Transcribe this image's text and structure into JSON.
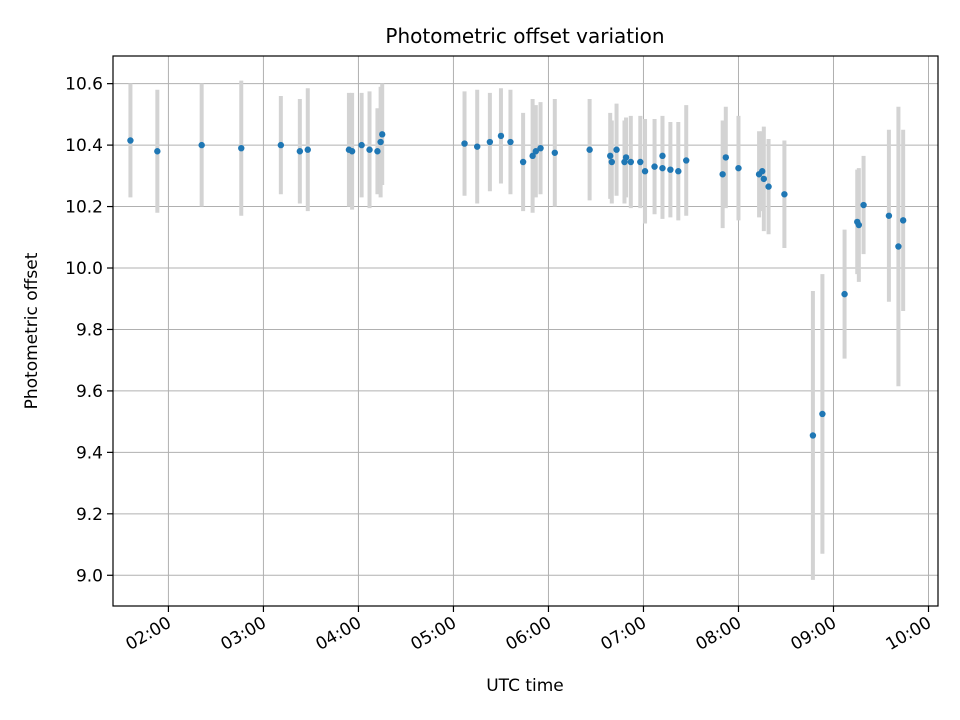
{
  "chart_data": {
    "type": "scatter",
    "title": "Photometric offset variation",
    "xlabel": "UTC time",
    "ylabel": "Photometric offset",
    "xlim": [
      "01:25",
      "10:06"
    ],
    "ylim": [
      8.9,
      10.69
    ],
    "x_ticks": [
      "02:00",
      "03:00",
      "04:00",
      "05:00",
      "06:00",
      "07:00",
      "08:00",
      "09:00",
      "10:00"
    ],
    "y_ticks": [
      "9.0",
      "9.2",
      "9.4",
      "9.6",
      "9.8",
      "10.0",
      "10.2",
      "10.4",
      "10.6"
    ],
    "grid": true,
    "colors": {
      "point": "#1f77b4",
      "errorbar": "#d3d3d3",
      "grid": "#b0b0b0"
    },
    "points": [
      {
        "x": "01:36",
        "y": 10.415,
        "err": 0.185
      },
      {
        "x": "01:53",
        "y": 10.38,
        "err": 0.2
      },
      {
        "x": "02:21",
        "y": 10.4,
        "err": 0.2
      },
      {
        "x": "02:46",
        "y": 10.39,
        "err": 0.22
      },
      {
        "x": "03:11",
        "y": 10.4,
        "err": 0.16
      },
      {
        "x": "03:23",
        "y": 10.38,
        "err": 0.17
      },
      {
        "x": "03:28",
        "y": 10.385,
        "err": 0.2
      },
      {
        "x": "03:54",
        "y": 10.385,
        "err": 0.185
      },
      {
        "x": "03:56",
        "y": 10.38,
        "err": 0.19
      },
      {
        "x": "04:02",
        "y": 10.4,
        "err": 0.17
      },
      {
        "x": "04:07",
        "y": 10.385,
        "err": 0.19
      },
      {
        "x": "04:12",
        "y": 10.38,
        "err": 0.14
      },
      {
        "x": "04:14",
        "y": 10.41,
        "err": 0.18
      },
      {
        "x": "04:15",
        "y": 10.435,
        "err": 0.165
      },
      {
        "x": "05:07",
        "y": 10.405,
        "err": 0.17
      },
      {
        "x": "05:15",
        "y": 10.395,
        "err": 0.185
      },
      {
        "x": "05:23",
        "y": 10.41,
        "err": 0.16
      },
      {
        "x": "05:30",
        "y": 10.43,
        "err": 0.155
      },
      {
        "x": "05:36",
        "y": 10.41,
        "err": 0.17
      },
      {
        "x": "05:44",
        "y": 10.345,
        "err": 0.16
      },
      {
        "x": "05:50",
        "y": 10.365,
        "err": 0.185
      },
      {
        "x": "05:52",
        "y": 10.38,
        "err": 0.15
      },
      {
        "x": "05:55",
        "y": 10.39,
        "err": 0.15
      },
      {
        "x": "06:04",
        "y": 10.375,
        "err": 0.175
      },
      {
        "x": "06:26",
        "y": 10.385,
        "err": 0.165
      },
      {
        "x": "06:39",
        "y": 10.365,
        "err": 0.14
      },
      {
        "x": "06:40",
        "y": 10.345,
        "err": 0.135
      },
      {
        "x": "06:43",
        "y": 10.385,
        "err": 0.15
      },
      {
        "x": "06:48",
        "y": 10.345,
        "err": 0.135
      },
      {
        "x": "06:49",
        "y": 10.36,
        "err": 0.13
      },
      {
        "x": "06:52",
        "y": 10.345,
        "err": 0.15
      },
      {
        "x": "06:58",
        "y": 10.345,
        "err": 0.15
      },
      {
        "x": "07:01",
        "y": 10.315,
        "err": 0.17
      },
      {
        "x": "07:07",
        "y": 10.33,
        "err": 0.155
      },
      {
        "x": "07:12",
        "y": 10.365,
        "err": 0.13
      },
      {
        "x": "07:12",
        "y": 10.325,
        "err": 0.165
      },
      {
        "x": "07:17",
        "y": 10.32,
        "err": 0.155
      },
      {
        "x": "07:22",
        "y": 10.315,
        "err": 0.16
      },
      {
        "x": "07:27",
        "y": 10.35,
        "err": 0.18
      },
      {
        "x": "07:50",
        "y": 10.305,
        "err": 0.175
      },
      {
        "x": "07:52",
        "y": 10.36,
        "err": 0.165
      },
      {
        "x": "08:00",
        "y": 10.325,
        "err": 0.17
      },
      {
        "x": "08:13",
        "y": 10.305,
        "err": 0.14
      },
      {
        "x": "08:15",
        "y": 10.315,
        "err": 0.13
      },
      {
        "x": "08:16",
        "y": 10.29,
        "err": 0.17
      },
      {
        "x": "08:19",
        "y": 10.265,
        "err": 0.155
      },
      {
        "x": "08:29",
        "y": 10.24,
        "err": 0.175
      },
      {
        "x": "08:47",
        "y": 9.455,
        "err": 0.47
      },
      {
        "x": "08:53",
        "y": 9.525,
        "err": 0.455
      },
      {
        "x": "09:07",
        "y": 9.915,
        "err": 0.21
      },
      {
        "x": "09:15",
        "y": 10.15,
        "err": 0.17
      },
      {
        "x": "09:16",
        "y": 10.14,
        "err": 0.185
      },
      {
        "x": "09:19",
        "y": 10.205,
        "err": 0.16
      },
      {
        "x": "09:35",
        "y": 10.17,
        "err": 0.28
      },
      {
        "x": "09:41",
        "y": 10.07,
        "err": 0.455
      },
      {
        "x": "09:44",
        "y": 10.155,
        "err": 0.295
      }
    ]
  }
}
